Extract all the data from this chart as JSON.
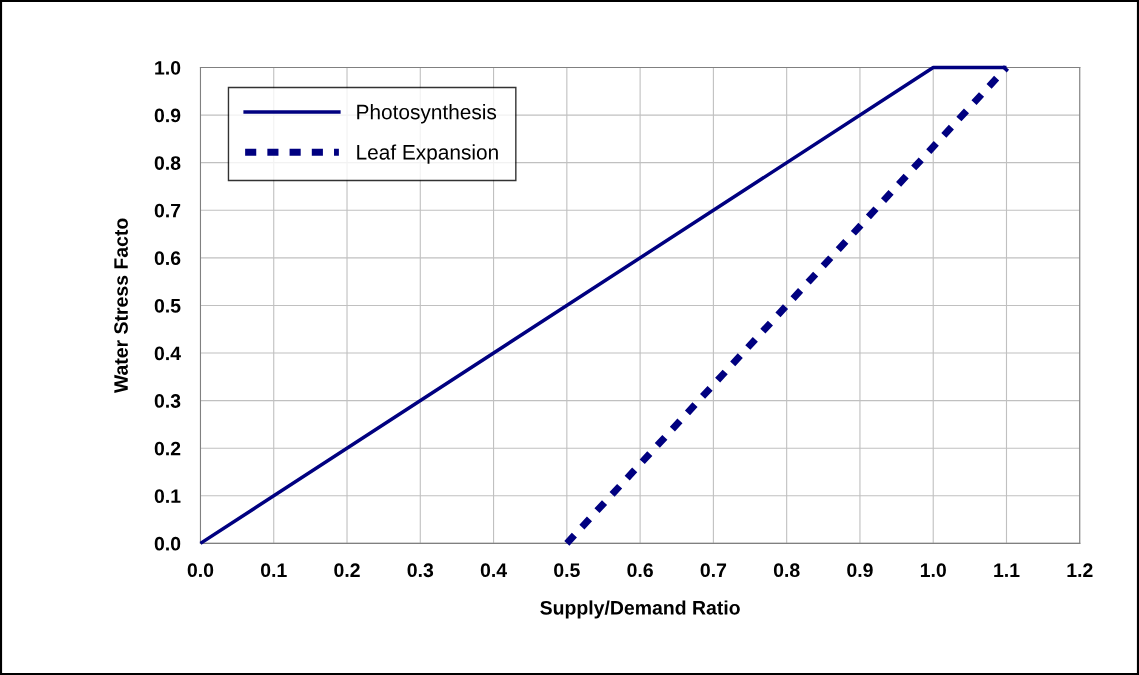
{
  "chart_data": {
    "type": "line",
    "xlabel": "Supply/Demand Ratio",
    "ylabel": "Water Stress Facto",
    "series": [
      {
        "name": "Photosynthesis",
        "color": "#000080",
        "x": [
          0.0,
          1.0,
          1.1
        ],
        "values": [
          0.0,
          1.0,
          1.0
        ],
        "line_style": "solid"
      },
      {
        "name": "Leaf Expansion",
        "color": "#000080",
        "x": [
          0.5,
          1.1
        ],
        "values": [
          0.0,
          1.0
        ],
        "line_style": "dashed"
      }
    ],
    "xlim": [
      0.0,
      1.2
    ],
    "xticks": [
      {
        "value": 0,
        "label": "0.0"
      },
      0.1,
      0.2,
      0.3,
      0.4,
      0.5,
      0.6,
      0.7,
      0.8,
      0.9,
      {
        "value": 1,
        "label": "1.0"
      },
      1.1,
      1.2
    ],
    "ylim": [
      0.0,
      1.0
    ],
    "yticks": [
      {
        "value": 0,
        "label": "0.0"
      },
      0.1,
      0.2,
      0.3,
      0.4,
      0.5,
      0.6,
      0.7,
      0.8,
      0.9,
      {
        "value": 1,
        "label": "1.0"
      }
    ],
    "grid": true,
    "legend": "top left",
    "marker": "none"
  }
}
